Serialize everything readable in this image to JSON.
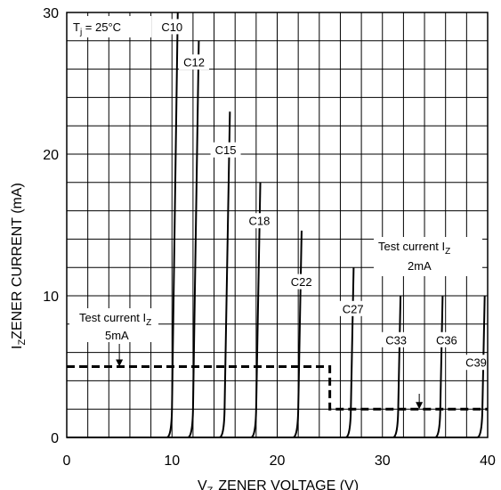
{
  "chart_data": {
    "type": "line",
    "xlabel": "ZENER VOLTAGE (V)",
    "xlabel_symbol": "V",
    "xlabel_sub": "Z",
    "ylabel": "ZENER CURRENT (mA)",
    "ylabel_symbol": "I",
    "ylabel_sub": "Z",
    "xlim": [
      0,
      40
    ],
    "ylim": [
      0,
      30
    ],
    "x_ticks": [
      0,
      10,
      20,
      30,
      40
    ],
    "y_ticks": [
      0,
      10,
      20,
      30
    ],
    "grid": true,
    "condition": {
      "prefix": "T",
      "sub": "j",
      "text": " = 25°C"
    },
    "series": [
      {
        "name": "C10",
        "vz": 10.0,
        "imax": 30.0,
        "label_at": [
          10.0,
          29.0
        ]
      },
      {
        "name": "C12",
        "vz": 12.0,
        "imax": 28.0,
        "label_at": [
          12.1,
          26.5
        ]
      },
      {
        "name": "C15",
        "vz": 15.0,
        "imax": 23.0,
        "label_at": [
          15.1,
          20.3
        ]
      },
      {
        "name": "C18",
        "vz": 18.0,
        "imax": 18.0,
        "label_at": [
          18.3,
          15.3
        ]
      },
      {
        "name": "C22",
        "vz": 22.0,
        "imax": 14.6,
        "label_at": [
          22.3,
          11.0
        ]
      },
      {
        "name": "C27",
        "vz": 27.0,
        "imax": 12.0,
        "label_at": [
          27.2,
          9.1
        ]
      },
      {
        "name": "C33",
        "vz": 31.5,
        "imax": 10.0,
        "label_at": [
          31.3,
          6.9
        ]
      },
      {
        "name": "C36",
        "vz": 35.5,
        "imax": 10.0,
        "label_at": [
          36.1,
          6.9
        ]
      },
      {
        "name": "C39",
        "vz": 39.5,
        "imax": 10.0,
        "label_at": [
          38.9,
          5.3
        ]
      }
    ],
    "test_current": [
      {
        "label_prefix": "Test current I",
        "label_sub": "Z",
        "value_label": "5mA",
        "value_ma": 5,
        "x_from": 0,
        "x_to": 25,
        "arrow_x": 5
      },
      {
        "label_prefix": "Test current I",
        "label_sub": "Z",
        "value_label": "2mA",
        "value_ma": 2,
        "x_from": 25,
        "x_to": 40,
        "arrow_x": 33.5
      }
    ]
  }
}
